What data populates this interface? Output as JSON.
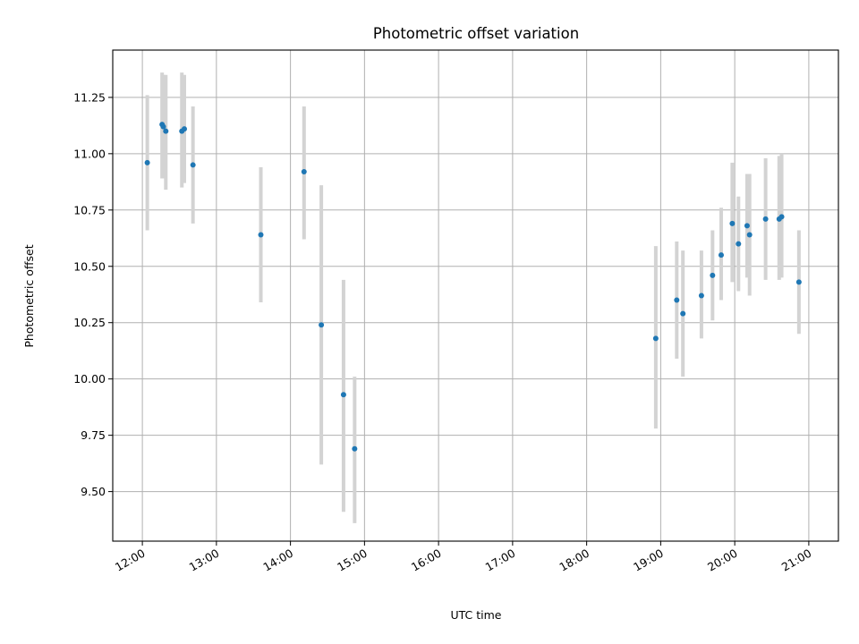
{
  "chart_data": {
    "type": "scatter",
    "title": "Photometric offset variation",
    "xlabel": "UTC time",
    "ylabel": "Photometric offset",
    "xlim": [
      "11:36",
      "21:24"
    ],
    "ylim": [
      9.28,
      11.46
    ],
    "x_ticks": [
      "12:00",
      "13:00",
      "14:00",
      "15:00",
      "16:00",
      "17:00",
      "18:00",
      "19:00",
      "20:00",
      "21:00"
    ],
    "y_ticks": [
      "9.50",
      "9.75",
      "10.00",
      "10.25",
      "10.50",
      "10.75",
      "11.00",
      "11.25"
    ],
    "grid": true,
    "point_color": "#1f77b4",
    "errorbar_color": "#d3d3d3",
    "points": [
      {
        "x": "12:04",
        "y": 10.96,
        "err_low": 10.66,
        "err_high": 11.26
      },
      {
        "x": "12:16",
        "y": 11.13,
        "err_low": 10.89,
        "err_high": 11.36
      },
      {
        "x": "12:17",
        "y": 11.12,
        "err_low": 10.89,
        "err_high": 11.35
      },
      {
        "x": "12:19",
        "y": 11.1,
        "err_low": 10.84,
        "err_high": 11.35
      },
      {
        "x": "12:32",
        "y": 11.1,
        "err_low": 10.85,
        "err_high": 11.36
      },
      {
        "x": "12:34",
        "y": 11.11,
        "err_low": 10.87,
        "err_high": 11.35
      },
      {
        "x": "12:41",
        "y": 10.95,
        "err_low": 10.69,
        "err_high": 11.21
      },
      {
        "x": "13:36",
        "y": 10.64,
        "err_low": 10.34,
        "err_high": 10.94
      },
      {
        "x": "14:11",
        "y": 10.92,
        "err_low": 10.62,
        "err_high": 11.21
      },
      {
        "x": "14:25",
        "y": 10.24,
        "err_low": 9.62,
        "err_high": 10.86
      },
      {
        "x": "14:43",
        "y": 9.93,
        "err_low": 9.41,
        "err_high": 10.44
      },
      {
        "x": "14:52",
        "y": 9.69,
        "err_low": 9.36,
        "err_high": 10.01
      },
      {
        "x": "18:56",
        "y": 10.18,
        "err_low": 9.78,
        "err_high": 10.59
      },
      {
        "x": "19:13",
        "y": 10.35,
        "err_low": 10.09,
        "err_high": 10.61
      },
      {
        "x": "19:18",
        "y": 10.29,
        "err_low": 10.01,
        "err_high": 10.57
      },
      {
        "x": "19:33",
        "y": 10.37,
        "err_low": 10.18,
        "err_high": 10.57
      },
      {
        "x": "19:42",
        "y": 10.46,
        "err_low": 10.26,
        "err_high": 10.66
      },
      {
        "x": "19:49",
        "y": 10.55,
        "err_low": 10.35,
        "err_high": 10.76
      },
      {
        "x": "19:58",
        "y": 10.69,
        "err_low": 10.43,
        "err_high": 10.96
      },
      {
        "x": "20:03",
        "y": 10.6,
        "err_low": 10.39,
        "err_high": 10.81
      },
      {
        "x": "20:10",
        "y": 10.68,
        "err_low": 10.45,
        "err_high": 10.91
      },
      {
        "x": "20:12",
        "y": 10.64,
        "err_low": 10.37,
        "err_high": 10.91
      },
      {
        "x": "20:25",
        "y": 10.71,
        "err_low": 10.44,
        "err_high": 10.98
      },
      {
        "x": "20:36",
        "y": 10.71,
        "err_low": 10.44,
        "err_high": 10.99
      },
      {
        "x": "20:38",
        "y": 10.72,
        "err_low": 10.45,
        "err_high": 11.0
      },
      {
        "x": "20:52",
        "y": 10.43,
        "err_low": 10.2,
        "err_high": 10.66
      }
    ]
  }
}
